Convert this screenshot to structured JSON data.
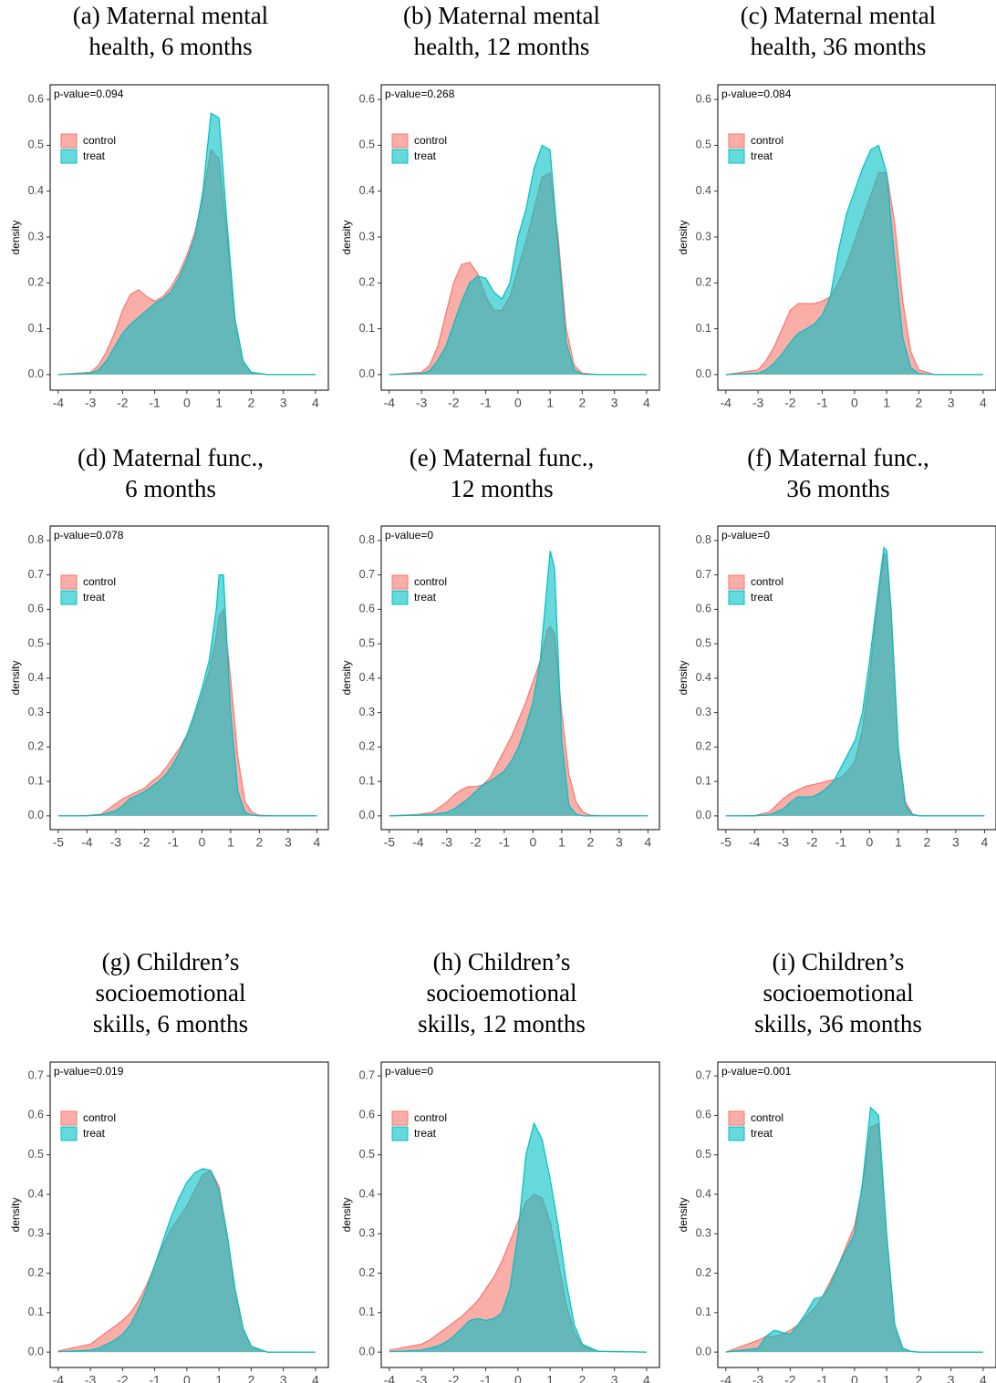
{
  "chart_data": [
    {
      "type": "area",
      "title": [
        "(a) Maternal mental",
        "health, 6 months"
      ],
      "annotation": "p-value=0.094",
      "ylabel": "density",
      "legend": "top-left",
      "x": [
        -4,
        -3,
        -2.75,
        -2.5,
        -2.25,
        -2,
        -1.75,
        -1.5,
        -1.25,
        -1,
        -0.75,
        -0.5,
        -0.25,
        0,
        0.25,
        0.5,
        0.75,
        1,
        1.25,
        1.5,
        1.75,
        2,
        2.5,
        4
      ],
      "xlim": [
        -4.25,
        4.4
      ],
      "xticks": [
        -4,
        -3,
        -2,
        -1,
        0,
        1,
        2,
        3,
        4
      ],
      "ylim": [
        -0.034,
        0.632
      ],
      "yticks": [
        {
          "value": 0,
          "label": "0.0"
        },
        0.1,
        0.2,
        0.3,
        0.4,
        0.5,
        0.6
      ],
      "series": [
        {
          "name": "control",
          "color": "#f8766d",
          "values": [
            0,
            0.005,
            0.02,
            0.05,
            0.09,
            0.14,
            0.175,
            0.185,
            0.17,
            0.16,
            0.17,
            0.19,
            0.22,
            0.26,
            0.31,
            0.39,
            0.49,
            0.47,
            0.3,
            0.12,
            0.03,
            0.005,
            0,
            0
          ]
        },
        {
          "name": "treat",
          "color": "#00bfc4",
          "values": [
            0,
            0.003,
            0.01,
            0.03,
            0.06,
            0.09,
            0.11,
            0.125,
            0.14,
            0.155,
            0.165,
            0.18,
            0.21,
            0.25,
            0.3,
            0.4,
            0.57,
            0.56,
            0.33,
            0.12,
            0.03,
            0.005,
            0,
            0
          ]
        }
      ]
    },
    {
      "type": "area",
      "title": [
        "(b) Maternal mental",
        "health, 12 months"
      ],
      "annotation": "p-value=0.268",
      "ylabel": "density",
      "legend": "top-left",
      "x": [
        -4,
        -3,
        -2.75,
        -2.5,
        -2.25,
        -2,
        -1.75,
        -1.5,
        -1.25,
        -1,
        -0.75,
        -0.5,
        -0.25,
        0,
        0.25,
        0.5,
        0.75,
        1,
        1.25,
        1.5,
        1.75,
        2,
        2.5,
        4
      ],
      "xlim": [
        -4.25,
        4.4
      ],
      "xticks": [
        -4,
        -3,
        -2,
        -1,
        0,
        1,
        2,
        3,
        4
      ],
      "ylim": [
        -0.034,
        0.632
      ],
      "yticks": [
        {
          "value": 0,
          "label": "0.0"
        },
        0.1,
        0.2,
        0.3,
        0.4,
        0.5,
        0.6
      ],
      "series": [
        {
          "name": "control",
          "color": "#f8766d",
          "values": [
            0,
            0.005,
            0.02,
            0.06,
            0.13,
            0.2,
            0.24,
            0.245,
            0.22,
            0.17,
            0.14,
            0.14,
            0.17,
            0.23,
            0.29,
            0.36,
            0.43,
            0.44,
            0.3,
            0.1,
            0.02,
            0.003,
            0,
            0
          ]
        },
        {
          "name": "treat",
          "color": "#00bfc4",
          "values": [
            0,
            0.002,
            0.008,
            0.03,
            0.06,
            0.11,
            0.16,
            0.2,
            0.215,
            0.21,
            0.18,
            0.165,
            0.2,
            0.3,
            0.36,
            0.45,
            0.5,
            0.49,
            0.28,
            0.07,
            0.01,
            0.001,
            0,
            0
          ]
        }
      ]
    },
    {
      "type": "area",
      "title": [
        "(c) Maternal mental",
        "health, 36 months"
      ],
      "annotation": "p-value=0.084",
      "ylabel": "density",
      "legend": "top-left",
      "x": [
        -4,
        -3,
        -2.75,
        -2.5,
        -2.25,
        -2,
        -1.75,
        -1.5,
        -1.25,
        -1,
        -0.75,
        -0.5,
        -0.25,
        0,
        0.25,
        0.5,
        0.75,
        1,
        1.25,
        1.5,
        1.75,
        2,
        2.5,
        4
      ],
      "xlim": [
        -4.25,
        4.4
      ],
      "xticks": [
        -4,
        -3,
        -2,
        -1,
        0,
        1,
        2,
        3,
        4
      ],
      "ylim": [
        -0.034,
        0.632
      ],
      "yticks": [
        {
          "value": 0,
          "label": "0.0"
        },
        0.1,
        0.2,
        0.3,
        0.4,
        0.5,
        0.6
      ],
      "series": [
        {
          "name": "control",
          "color": "#f8766d",
          "values": [
            0,
            0.01,
            0.03,
            0.06,
            0.1,
            0.14,
            0.155,
            0.155,
            0.155,
            0.16,
            0.17,
            0.2,
            0.24,
            0.29,
            0.34,
            0.39,
            0.44,
            0.44,
            0.33,
            0.16,
            0.05,
            0.01,
            0,
            0
          ]
        },
        {
          "name": "treat",
          "color": "#00bfc4",
          "values": [
            0,
            0.003,
            0.01,
            0.025,
            0.045,
            0.07,
            0.09,
            0.1,
            0.11,
            0.13,
            0.17,
            0.27,
            0.35,
            0.4,
            0.45,
            0.49,
            0.5,
            0.44,
            0.25,
            0.08,
            0.015,
            0.002,
            0,
            0
          ]
        }
      ]
    },
    {
      "type": "area",
      "title": [
        "(d) Maternal func.,",
        "6 months"
      ],
      "annotation": "p-value=0.078",
      "ylabel": "density",
      "legend": "top-left",
      "x": [
        -5,
        -4.5,
        -4,
        -3.5,
        -3,
        -2.75,
        -2.5,
        -2.25,
        -2,
        -1.75,
        -1.5,
        -1.25,
        -1,
        -0.75,
        -0.5,
        -0.25,
        0,
        0.25,
        0.5,
        0.6,
        0.75,
        1,
        1.25,
        1.5,
        1.75,
        2,
        2.5,
        4
      ],
      "xlim": [
        -5.28,
        4.4
      ],
      "xticks": [
        -5,
        -4,
        -3,
        -2,
        -1,
        0,
        1,
        2,
        3,
        4
      ],
      "ylim": [
        -0.04,
        0.842
      ],
      "yticks": [
        {
          "value": 0,
          "label": "0.0"
        },
        0.1,
        0.2,
        0.3,
        0.4,
        0.5,
        0.6,
        0.7,
        0.8
      ],
      "series": [
        {
          "name": "control",
          "color": "#f8766d",
          "values": [
            0,
            0,
            0.001,
            0.005,
            0.035,
            0.05,
            0.06,
            0.07,
            0.08,
            0.1,
            0.115,
            0.14,
            0.17,
            0.2,
            0.24,
            0.29,
            0.35,
            0.42,
            0.52,
            0.58,
            0.6,
            0.4,
            0.17,
            0.04,
            0.01,
            0.002,
            0,
            0
          ]
        },
        {
          "name": "treat",
          "color": "#00bfc4",
          "values": [
            0,
            0,
            0,
            0.003,
            0.015,
            0.03,
            0.05,
            0.06,
            0.07,
            0.085,
            0.1,
            0.12,
            0.15,
            0.19,
            0.24,
            0.3,
            0.37,
            0.45,
            0.6,
            0.7,
            0.7,
            0.3,
            0.07,
            0.01,
            0.002,
            0,
            0,
            0
          ]
        }
      ]
    },
    {
      "type": "area",
      "title": [
        "(e) Maternal func.,",
        "12 months"
      ],
      "annotation": "p-value=0",
      "ylabel": "density",
      "legend": "top-left",
      "x": [
        -5,
        -4.5,
        -4,
        -3.5,
        -3,
        -2.75,
        -2.5,
        -2.25,
        -2,
        -1.75,
        -1.5,
        -1.25,
        -1,
        -0.75,
        -0.5,
        -0.25,
        0,
        0.25,
        0.5,
        0.6,
        0.75,
        1,
        1.25,
        1.5,
        1.75,
        2,
        2.5,
        4
      ],
      "xlim": [
        -5.28,
        4.4
      ],
      "xticks": [
        -5,
        -4,
        -3,
        -2,
        -1,
        0,
        1,
        2,
        3,
        4
      ],
      "ylim": [
        -0.04,
        0.842
      ],
      "yticks": [
        {
          "value": 0,
          "label": "0.0"
        },
        0.1,
        0.2,
        0.3,
        0.4,
        0.5,
        0.6,
        0.7,
        0.8
      ],
      "series": [
        {
          "name": "control",
          "color": "#f8766d",
          "values": [
            0,
            0.002,
            0.004,
            0.01,
            0.04,
            0.06,
            0.075,
            0.085,
            0.085,
            0.09,
            0.11,
            0.15,
            0.19,
            0.23,
            0.28,
            0.33,
            0.39,
            0.45,
            0.54,
            0.55,
            0.53,
            0.3,
            0.12,
            0.04,
            0.01,
            0.002,
            0,
            0
          ]
        },
        {
          "name": "treat",
          "color": "#00bfc4",
          "values": [
            0,
            0.001,
            0.002,
            0.004,
            0.01,
            0.02,
            0.035,
            0.05,
            0.07,
            0.09,
            0.1,
            0.115,
            0.13,
            0.16,
            0.2,
            0.26,
            0.33,
            0.45,
            0.68,
            0.77,
            0.72,
            0.22,
            0.03,
            0.005,
            0,
            0,
            0,
            0
          ]
        }
      ]
    },
    {
      "type": "area",
      "title": [
        "(f) Maternal func.,",
        "36 months"
      ],
      "annotation": "p-value=0",
      "ylabel": "density",
      "legend": "top-left",
      "x": [
        -5,
        -4.5,
        -4,
        -3.5,
        -3,
        -2.75,
        -2.5,
        -2.25,
        -2,
        -1.75,
        -1.5,
        -1.25,
        -1,
        -0.75,
        -0.5,
        -0.25,
        0,
        0.25,
        0.5,
        0.6,
        0.75,
        1,
        1.25,
        1.5,
        1.75,
        2,
        2.5,
        4
      ],
      "xlim": [
        -5.28,
        4.4
      ],
      "xticks": [
        -5,
        -4,
        -3,
        -2,
        -1,
        0,
        1,
        2,
        3,
        4
      ],
      "ylim": [
        -0.04,
        0.842
      ],
      "yticks": [
        {
          "value": 0,
          "label": "0.0"
        },
        0.1,
        0.2,
        0.3,
        0.4,
        0.5,
        0.6,
        0.7,
        0.8
      ],
      "series": [
        {
          "name": "control",
          "color": "#f8766d",
          "values": [
            0,
            0,
            0.001,
            0.01,
            0.05,
            0.065,
            0.075,
            0.085,
            0.09,
            0.095,
            0.1,
            0.105,
            0.11,
            0.13,
            0.16,
            0.25,
            0.4,
            0.6,
            0.76,
            0.76,
            0.6,
            0.2,
            0.04,
            0.005,
            0,
            0,
            0,
            0
          ]
        },
        {
          "name": "treat",
          "color": "#00bfc4",
          "values": [
            0,
            0,
            0,
            0.003,
            0.02,
            0.04,
            0.055,
            0.055,
            0.055,
            0.065,
            0.08,
            0.1,
            0.14,
            0.18,
            0.22,
            0.3,
            0.45,
            0.62,
            0.78,
            0.77,
            0.6,
            0.2,
            0.03,
            0.003,
            0,
            0,
            0,
            0
          ]
        }
      ]
    },
    {
      "type": "area",
      "title": [
        "(g) Children’s",
        "socioemotional",
        "skills, 6 months"
      ],
      "annotation": "p-value=0.019",
      "ylabel": "density",
      "legend": "top-left",
      "x": [
        -4,
        -3,
        -2.75,
        -2.5,
        -2.25,
        -2,
        -1.75,
        -1.5,
        -1.25,
        -1,
        -0.75,
        -0.5,
        -0.25,
        0,
        0.25,
        0.5,
        0.75,
        1,
        1.25,
        1.5,
        1.75,
        2,
        2.5,
        4
      ],
      "xlim": [
        -4.25,
        4.4
      ],
      "xticks": [
        -4,
        -3,
        -2,
        -1,
        0,
        1,
        2,
        3,
        4
      ],
      "ylim": [
        -0.039,
        0.735
      ],
      "yticks": [
        {
          "value": 0,
          "label": "0.0"
        },
        0.1,
        0.2,
        0.3,
        0.4,
        0.5,
        0.6,
        0.7
      ],
      "series": [
        {
          "name": "control",
          "color": "#f8766d",
          "values": [
            0.003,
            0.02,
            0.035,
            0.05,
            0.065,
            0.08,
            0.1,
            0.13,
            0.17,
            0.22,
            0.27,
            0.31,
            0.34,
            0.37,
            0.41,
            0.45,
            0.46,
            0.42,
            0.3,
            0.16,
            0.06,
            0.015,
            0,
            0
          ]
        },
        {
          "name": "treat",
          "color": "#00bfc4",
          "values": [
            0.001,
            0.005,
            0.01,
            0.02,
            0.03,
            0.045,
            0.07,
            0.11,
            0.16,
            0.22,
            0.28,
            0.34,
            0.39,
            0.43,
            0.455,
            0.465,
            0.46,
            0.41,
            0.3,
            0.16,
            0.06,
            0.015,
            0,
            0
          ]
        }
      ]
    },
    {
      "type": "area",
      "title": [
        "(h) Children’s",
        "socioemotional",
        "skills, 12 months"
      ],
      "annotation": "p-value=0",
      "ylabel": "density",
      "legend": "top-left",
      "x": [
        -4,
        -3,
        -2.75,
        -2.5,
        -2.25,
        -2,
        -1.75,
        -1.5,
        -1.25,
        -1,
        -0.75,
        -0.5,
        -0.25,
        0,
        0.25,
        0.5,
        0.75,
        1,
        1.25,
        1.5,
        1.75,
        2,
        2.5,
        4
      ],
      "xlim": [
        -4.25,
        4.4
      ],
      "xticks": [
        -4,
        -3,
        -2,
        -1,
        0,
        1,
        2,
        3,
        4
      ],
      "ylim": [
        -0.039,
        0.735
      ],
      "yticks": [
        {
          "value": 0,
          "label": "0.0"
        },
        0.1,
        0.2,
        0.3,
        0.4,
        0.5,
        0.6,
        0.7
      ],
      "series": [
        {
          "name": "control",
          "color": "#f8766d",
          "values": [
            0.005,
            0.02,
            0.03,
            0.045,
            0.06,
            0.075,
            0.09,
            0.11,
            0.13,
            0.16,
            0.19,
            0.23,
            0.28,
            0.33,
            0.38,
            0.4,
            0.39,
            0.33,
            0.23,
            0.12,
            0.05,
            0.015,
            0.002,
            0
          ]
        },
        {
          "name": "treat",
          "color": "#00bfc4",
          "values": [
            0.001,
            0.005,
            0.01,
            0.015,
            0.025,
            0.04,
            0.06,
            0.08,
            0.085,
            0.08,
            0.085,
            0.1,
            0.16,
            0.3,
            0.5,
            0.58,
            0.54,
            0.44,
            0.32,
            0.18,
            0.07,
            0.02,
            0.002,
            0
          ]
        }
      ]
    },
    {
      "type": "area",
      "title": [
        "(i) Children’s",
        "socioemotional",
        "skills, 36 months"
      ],
      "annotation": "p-value=0.001",
      "ylabel": "density",
      "legend": "top-left",
      "x": [
        -4,
        -3,
        -2.75,
        -2.5,
        -2.25,
        -2,
        -1.75,
        -1.5,
        -1.25,
        -1,
        -0.75,
        -0.5,
        -0.25,
        0,
        0.25,
        0.5,
        0.75,
        1,
        1.25,
        1.5,
        1.75,
        2,
        2.5,
        4
      ],
      "xlim": [
        -4.25,
        4.4
      ],
      "xticks": [
        -4,
        -3,
        -2,
        -1,
        0,
        1,
        2,
        3,
        4
      ],
      "ylim": [
        -0.039,
        0.735
      ],
      "yticks": [
        {
          "value": 0,
          "label": "0.0"
        },
        0.1,
        0.2,
        0.3,
        0.4,
        0.5,
        0.6,
        0.7
      ],
      "series": [
        {
          "name": "control",
          "color": "#f8766d",
          "values": [
            0,
            0.03,
            0.04,
            0.04,
            0.045,
            0.055,
            0.07,
            0.09,
            0.11,
            0.14,
            0.18,
            0.22,
            0.27,
            0.32,
            0.42,
            0.57,
            0.58,
            0.3,
            0.07,
            0.01,
            0.002,
            0,
            0,
            0
          ]
        },
        {
          "name": "treat",
          "color": "#00bfc4",
          "values": [
            0,
            0.01,
            0.04,
            0.055,
            0.05,
            0.045,
            0.07,
            0.1,
            0.135,
            0.14,
            0.17,
            0.22,
            0.26,
            0.3,
            0.43,
            0.62,
            0.6,
            0.3,
            0.07,
            0.01,
            0.002,
            0,
            0,
            0
          ]
        }
      ]
    }
  ]
}
